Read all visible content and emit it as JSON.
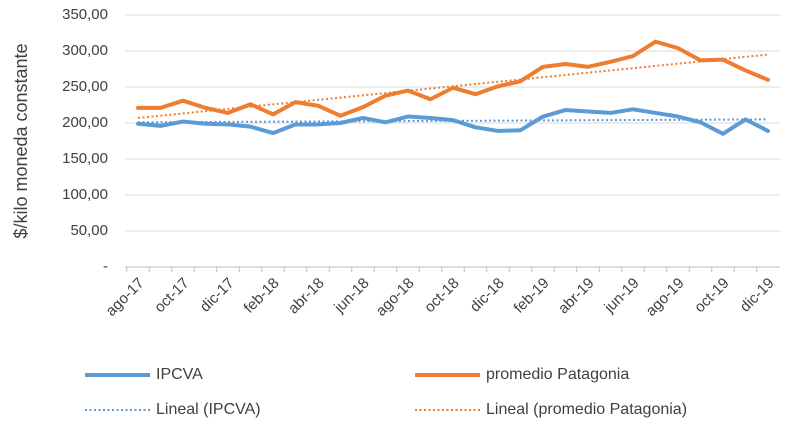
{
  "chart_data": {
    "type": "line",
    "y_axis_label": "$/kilo moneda constante",
    "categories": [
      "ago-17",
      null,
      "oct-17",
      null,
      "dic-17",
      null,
      "feb-18",
      null,
      "abr-18",
      null,
      "jun-18",
      null,
      "ago-18",
      null,
      "oct-18",
      null,
      "dic-18",
      null,
      "feb-19",
      null,
      "abr-19",
      null,
      "jun-19",
      null,
      "ago-19",
      null,
      "oct-19",
      null,
      "dic-19"
    ],
    "series": [
      {
        "name": "IPCVA",
        "color": "#5b9bd5",
        "style": "solid",
        "values": [
          199,
          196,
          202,
          199,
          198,
          195,
          186,
          198,
          198,
          200,
          207,
          201,
          209,
          207,
          204,
          194,
          189,
          190,
          209,
          218,
          216,
          214,
          219,
          214,
          209,
          201,
          185,
          205,
          189
        ]
      },
      {
        "name": "promedio Patagonia",
        "color": "#ed7d31",
        "style": "solid",
        "values": [
          221,
          221,
          231,
          221,
          214,
          226,
          212,
          229,
          224,
          210,
          222,
          238,
          245,
          233,
          249,
          240,
          251,
          258,
          278,
          282,
          278,
          285,
          293,
          313,
          304,
          287,
          288,
          273,
          260
        ]
      },
      {
        "name": "Lineal (IPCVA)",
        "color": "#5b9bd5",
        "style": "dotted",
        "values": [
          201,
          201.1,
          201.3,
          201.4,
          201.6,
          201.7,
          201.9,
          202,
          202.1,
          202.3,
          202.4,
          202.6,
          202.7,
          202.9,
          203,
          203.1,
          203.3,
          203.4,
          203.6,
          203.7,
          203.9,
          204,
          204.1,
          204.3,
          204.4,
          204.6,
          204.7,
          204.9,
          205
        ]
      },
      {
        "name": "Lineal (promedio Patagonia)",
        "color": "#ed7d31",
        "style": "dotted",
        "values": [
          207,
          210.1,
          213.3,
          216.4,
          219.6,
          222.7,
          225.9,
          229,
          232.1,
          235.3,
          238.4,
          241.6,
          244.7,
          247.9,
          251,
          254.1,
          257.3,
          260.4,
          263.6,
          266.7,
          269.9,
          273,
          276.1,
          279.3,
          282.4,
          285.6,
          288.7,
          291.9,
          295
        ]
      }
    ],
    "ylim": [
      0,
      350
    ],
    "yticks": [
      {
        "value": 0,
        "label": "-"
      },
      {
        "value": 50,
        "label": "50,00"
      },
      {
        "value": 100,
        "label": "100,00"
      },
      {
        "value": 150,
        "label": "150,00"
      },
      {
        "value": 200,
        "label": "200,00"
      },
      {
        "value": 250,
        "label": "250,00"
      },
      {
        "value": 300,
        "label": "300,00"
      },
      {
        "value": 350,
        "label": "350,00"
      }
    ],
    "grid": true,
    "legend": "bottom"
  }
}
